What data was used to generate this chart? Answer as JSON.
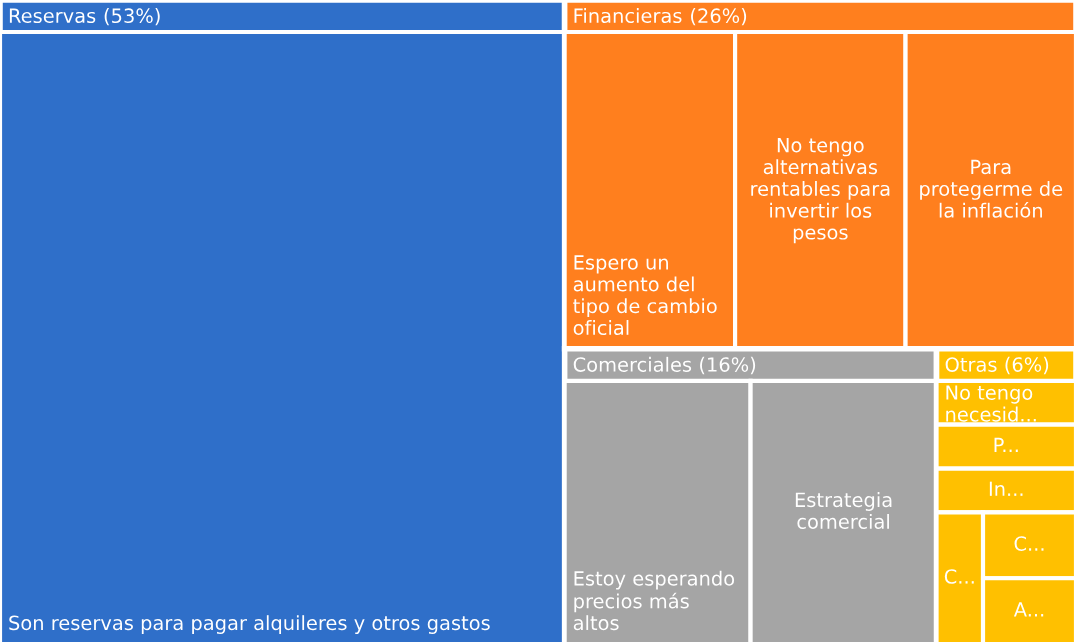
{
  "chart_data": {
    "type": "other",
    "categories": [
      "Reservas",
      "Financieras",
      "Comerciales",
      "Otras"
    ],
    "values": [
      53,
      26,
      16,
      6
    ],
    "value_labels": [
      "(53%)",
      "(26%)",
      "(16%)",
      "(6%)"
    ],
    "colors": [
      "#2f6fc9",
      "#ff7f1e",
      "#a5a5a5",
      "#ffc000"
    ],
    "annotations": [
      {
        "text": "Son reservas para pagar alquileres y otros gastos",
        "x": "Reservas"
      },
      {
        "text": "Espero un aumento del tipo de cambio oficial",
        "x": "Financieras"
      },
      {
        "text": "No tengo alternativas rentables para invertir los pesos",
        "x": "Financieras"
      },
      {
        "text": "Para protegerme de la inflación",
        "x": "Financieras"
      },
      {
        "text": "Estoy esperando precios más altos",
        "x": "Comerciales"
      },
      {
        "text": "Estrategia comercial",
        "x": "Comerciales"
      },
      {
        "text": "No tengo necesid...",
        "x": "Otras"
      },
      {
        "text": "P...",
        "x": "Otras"
      },
      {
        "text": "In...",
        "x": "Otras"
      },
      {
        "text": "C...",
        "x": "Otras"
      },
      {
        "text": "C...",
        "x": "Otras"
      },
      {
        "text": "A...",
        "x": "Otras"
      }
    ]
  }
}
